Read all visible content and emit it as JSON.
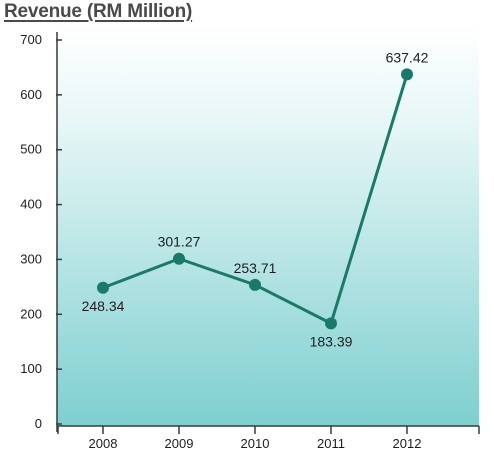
{
  "chart_data": {
    "type": "line",
    "title": "Revenue (RM Million)",
    "xlabel": "",
    "ylabel": "",
    "categories": [
      "2008",
      "2009",
      "2010",
      "2011",
      "2012"
    ],
    "series": [
      {
        "values": [
          248.34,
          301.27,
          253.71,
          183.39,
          637.42
        ]
      }
    ],
    "data_labels": [
      "248.34",
      "301.27",
      "253.71",
      "183.39",
      "637.42"
    ],
    "y_ticks": [
      0,
      100,
      200,
      300,
      400,
      500,
      600,
      700
    ],
    "ylim": [
      0,
      700
    ],
    "grid": false,
    "legend": "none",
    "colors": {
      "line": "#1a7a6a",
      "marker": "#1a7a6a",
      "plot_gradient_top": "#ffffff",
      "plot_gradient_bottom": "#7ecfcf",
      "axis": "#3a3a3a"
    }
  }
}
